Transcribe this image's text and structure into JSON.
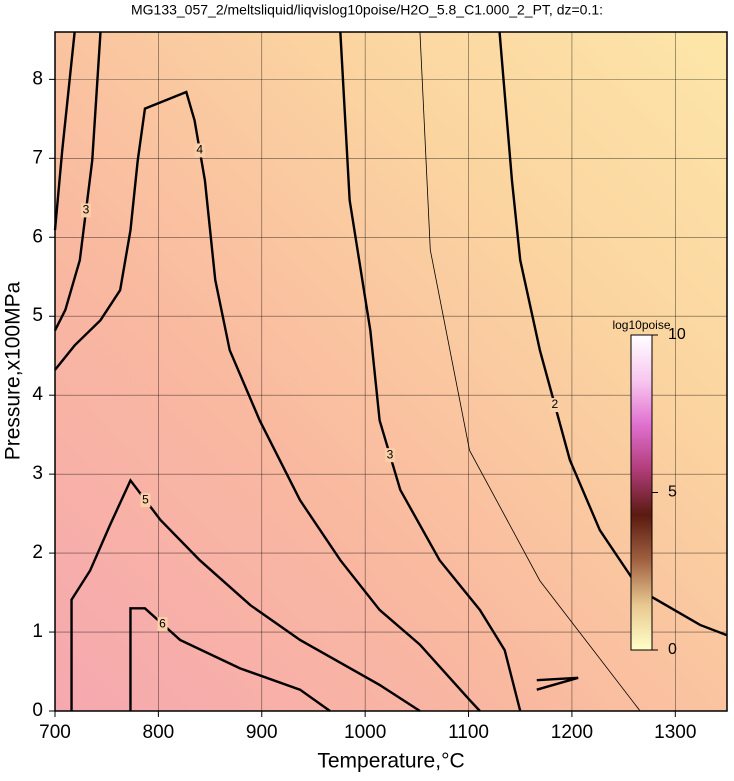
{
  "chart_data": {
    "type": "contour",
    "title": "MG133_057_2/meltsliquid/liqvislog10poise/H2O_5.8_C1.000_2_PT, dz=0.1:",
    "x_label": "Temperature,°C",
    "y_label": "Pressure,x100MPa",
    "xlim": [
      700,
      1350
    ],
    "ylim": [
      0,
      8.6
    ],
    "xticks": [
      700,
      800,
      900,
      1000,
      1100,
      1200,
      1300
    ],
    "yticks": [
      0,
      1,
      2,
      3,
      4,
      5,
      6,
      7,
      8
    ],
    "grid": true,
    "contours": [
      {
        "level": 2,
        "x": [
          1130,
          1142,
          1150,
          1169,
          1198,
          1227,
          1266,
          1324,
          1350
        ],
        "y": [
          8.6,
          6.72,
          5.71,
          4.57,
          3.18,
          2.29,
          1.53,
          1.09,
          0.96
        ]
      },
      {
        "level": 2,
        "x": [
          719,
          707,
          700
        ],
        "y": [
          8.6,
          7.1,
          6.09
        ]
      },
      {
        "level": 3,
        "x": [
          976,
          985,
          1005,
          1014,
          1034,
          1072,
          1111,
          1135,
          1150
        ],
        "y": [
          8.6,
          6.47,
          4.82,
          3.68,
          2.8,
          1.91,
          1.28,
          0.77,
          0
        ]
      },
      {
        "level": 3,
        "x": [
          744,
          736,
          724,
          710,
          700
        ],
        "y": [
          8.6,
          6.97,
          5.71,
          5.08,
          4.82
        ]
      },
      {
        "level": 3,
        "x": [
          1166,
          1206,
          1166
        ],
        "y": [
          0.39,
          0.42,
          0.27
        ]
      },
      {
        "level": 4,
        "x": [
          700,
          719,
          744,
          763,
          773,
          780,
          787,
          827,
          835,
          845,
          855,
          869,
          898,
          937,
          976,
          1014,
          1053,
          1101,
          1111
        ],
        "y": [
          4.32,
          4.63,
          4.95,
          5.33,
          6.09,
          6.97,
          7.63,
          7.84,
          7.48,
          6.72,
          5.46,
          4.57,
          3.68,
          2.67,
          1.91,
          1.28,
          0.84,
          0.14,
          0
        ]
      },
      {
        "level": 5,
        "x": [
          716,
          716,
          734,
          753,
          773,
          802,
          840,
          889,
          937,
          1014,
          1053
        ],
        "y": [
          0,
          1.41,
          1.78,
          2.35,
          2.92,
          2.42,
          1.91,
          1.34,
          0.9,
          0.33,
          0
        ]
      },
      {
        "level": 6,
        "x": [
          773,
          773,
          787,
          821,
          879,
          937,
          966
        ],
        "y": [
          0,
          1.3,
          1.3,
          0.9,
          0.54,
          0.27,
          0
        ]
      },
      {
        "level": 2.5,
        "x": [
          1053,
          1063,
          1101,
          1169,
          1266
        ],
        "y": [
          8.6,
          5.84,
          3.3,
          1.65,
          0
        ]
      }
    ],
    "colorbar": {
      "label": "log10poise",
      "lim": [
        0,
        10
      ],
      "ticks": [
        0,
        5,
        10
      ],
      "colors": [
        "#ffffc8",
        "#e8c890",
        "#a06040",
        "#5a1a10",
        "#b03c78",
        "#e070d0",
        "#f8c8f0",
        "#ffffff"
      ]
    }
  }
}
